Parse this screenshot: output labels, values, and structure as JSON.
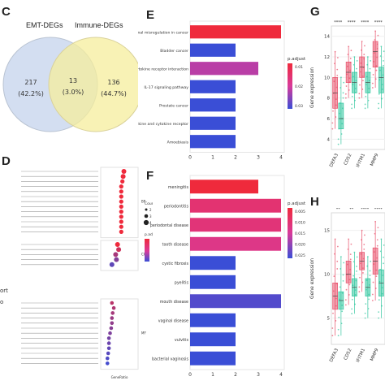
{
  "panels": {
    "C": "C",
    "D": "D",
    "E": "E",
    "F": "F",
    "G": "G",
    "H": "H"
  },
  "venn": {
    "left_label": "EMT-DEGs",
    "right_label": "Immune-DEGs",
    "left_count": "217",
    "left_pct": "(42.2%)",
    "mid_count": "13",
    "mid_pct": "(3.0%)",
    "right_count": "136",
    "right_pct": "(44.7%)",
    "left_color": "#cbd8ef",
    "right_color": "#f5ee9c"
  },
  "left_edge": {
    "line1": "ort",
    "line2": "o"
  },
  "colors": {
    "bar_high": "#ef2a3c",
    "bar_mid": "#d93a9a",
    "bar_low": "#3a4ed6",
    "box_red": "#e8506a",
    "box_green": "#33c7a0"
  },
  "chart_data": [
    {
      "panel": "E",
      "type": "bar",
      "orientation": "horizontal",
      "categories": [
        "Transcriptional misregulation in cancer",
        "Bladder cancer",
        "Cytokine-cytokine receptor interaction",
        "IL-17 signaling pathway",
        "Prostate cancer",
        "Viral protein interaction with cytokine and cytokine receptor",
        "Amoebiasis"
      ],
      "values": [
        4,
        2,
        3,
        2,
        2,
        2,
        2
      ],
      "padjust": [
        0.005,
        0.03,
        0.02,
        0.03,
        0.03,
        0.03,
        0.03
      ],
      "xlim": [
        0,
        4
      ],
      "xticks": [
        "0",
        "1",
        "2",
        "3",
        "4"
      ],
      "legend_title": "p.adjust",
      "legend_ticks": [
        "0.01",
        "0.02",
        "0.03"
      ]
    },
    {
      "panel": "F",
      "type": "bar",
      "orientation": "horizontal",
      "categories": [
        "meningitis",
        "periodontitis",
        "periodontal disease",
        "tooth disease",
        "cystic fibrosis",
        "pyelitis",
        "mouth disease",
        "vaginal disease",
        "vulvitis",
        "bacterial vaginosis"
      ],
      "values": [
        3,
        4,
        4,
        4,
        2,
        2,
        4,
        2,
        2,
        2
      ],
      "padjust": [
        0.005,
        0.012,
        0.013,
        0.015,
        0.03,
        0.03,
        0.028,
        0.03,
        0.03,
        0.03
      ],
      "xlim": [
        0,
        4
      ],
      "xticks": [
        "0",
        "1",
        "2",
        "3",
        "4"
      ],
      "legend_title": "p.adjust",
      "legend_ticks": [
        "0.005",
        "0.010",
        "0.015",
        "0.020",
        "0.025"
      ]
    },
    {
      "panel": "D",
      "type": "scatter",
      "xlabel": "GeneRatio",
      "legend_count_title": "Count",
      "legend_count_ticks": [
        "2",
        "3",
        "4"
      ],
      "legend_padj_title": "p.adjust",
      "groups": [
        "BP",
        "CC",
        "MF"
      ]
    },
    {
      "panel": "G",
      "type": "box",
      "categories": [
        "DEFA3",
        "CD52",
        "IFITM1",
        "MMP9"
      ],
      "ylabel": "Gene expression",
      "yticks": [
        "4",
        "6",
        "8",
        "10",
        "12",
        "14"
      ],
      "ylim": [
        3,
        15
      ],
      "series": [
        {
          "color": "red",
          "q": [
            [
              5,
              7,
              8.5,
              10,
              12.5
            ],
            [
              8,
              9.5,
              10.5,
              11.5,
              13
            ],
            [
              8,
              10,
              11,
              12,
              13.5
            ],
            [
              9,
              11,
              12.5,
              13.5,
              14.5
            ]
          ]
        },
        {
          "color": "green",
          "q": [
            [
              3.5,
              5,
              6,
              7.5,
              10
            ],
            [
              7,
              8.5,
              9.5,
              10.5,
              12
            ],
            [
              7,
              8.5,
              9.5,
              10.5,
              12
            ],
            [
              7,
              8.5,
              10,
              11,
              13
            ]
          ]
        }
      ],
      "sig": [
        "****",
        "****",
        "****",
        "****"
      ]
    },
    {
      "panel": "H",
      "type": "box",
      "categories": [
        "DEFA3",
        "CD52",
        "IFITM1",
        "MMP9"
      ],
      "ylabel": "Gene expression",
      "yticks": [
        "5",
        "10",
        "15"
      ],
      "ylim": [
        2,
        17
      ],
      "series": [
        {
          "color": "red",
          "q": [
            [
              3,
              6,
              7.5,
              9,
              14
            ],
            [
              6.5,
              9,
              10,
              11.5,
              14
            ],
            [
              8,
              10.5,
              11.5,
              12.5,
              15
            ],
            [
              7,
              10,
              11.5,
              13,
              16
            ]
          ]
        },
        {
          "color": "green",
          "q": [
            [
              3,
              6,
              7,
              8,
              12
            ],
            [
              5.5,
              7.5,
              8.5,
              9.5,
              12.5
            ],
            [
              5,
              7.5,
              8.5,
              9.5,
              12
            ],
            [
              5,
              7.5,
              9,
              10.5,
              14
            ]
          ]
        }
      ],
      "sig": [
        "**",
        "**",
        "****",
        "****"
      ]
    }
  ]
}
